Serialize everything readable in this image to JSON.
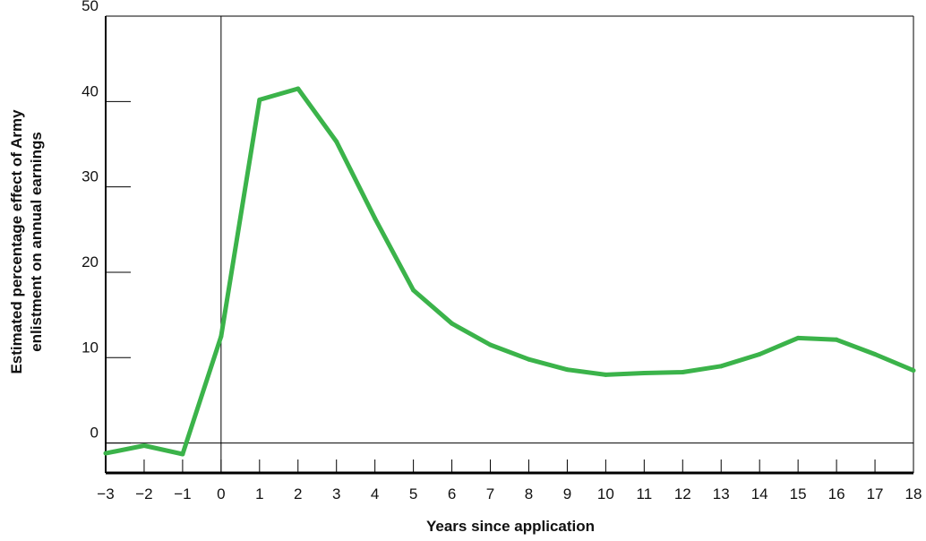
{
  "chart_data": {
    "type": "line",
    "title": "",
    "xlabel": "Years since application",
    "ylabel_lines": [
      "Estimated percentage effect of Army",
      "enlistment on annual earnings"
    ],
    "xlim": [
      -3,
      18
    ],
    "ylim": [
      -3.5,
      50
    ],
    "x_ticks": [
      -3,
      -2,
      -1,
      0,
      1,
      2,
      3,
      4,
      5,
      6,
      7,
      8,
      9,
      10,
      11,
      12,
      13,
      14,
      15,
      16,
      17,
      18
    ],
    "x_tick_labels": [
      "−3",
      "−2",
      "−1",
      "0",
      "1",
      "2",
      "3",
      "4",
      "5",
      "6",
      "7",
      "8",
      "9",
      "10",
      "11",
      "12",
      "13",
      "14",
      "15",
      "16",
      "17",
      "18"
    ],
    "y_ticks": [
      0,
      10,
      20,
      30,
      40,
      50
    ],
    "y_tick_labels": [
      "0",
      "10",
      "20",
      "30",
      "40",
      "50"
    ],
    "reference_lines": {
      "horizontal_y": 0,
      "vertical_x": 0
    },
    "series": [
      {
        "color": "#3bb34a",
        "x": [
          -3,
          -2,
          -1,
          0,
          1,
          2,
          3,
          4,
          5,
          6,
          7,
          8,
          9,
          10,
          11,
          12,
          13,
          14,
          15,
          16,
          17,
          18
        ],
        "y": [
          -1.2,
          -0.3,
          -1.3,
          12.5,
          40.2,
          41.5,
          35.3,
          26.3,
          17.9,
          14.0,
          11.5,
          9.8,
          8.6,
          8.0,
          8.2,
          8.3,
          9.0,
          10.4,
          12.3,
          12.1,
          10.4,
          8.5
        ]
      }
    ]
  }
}
